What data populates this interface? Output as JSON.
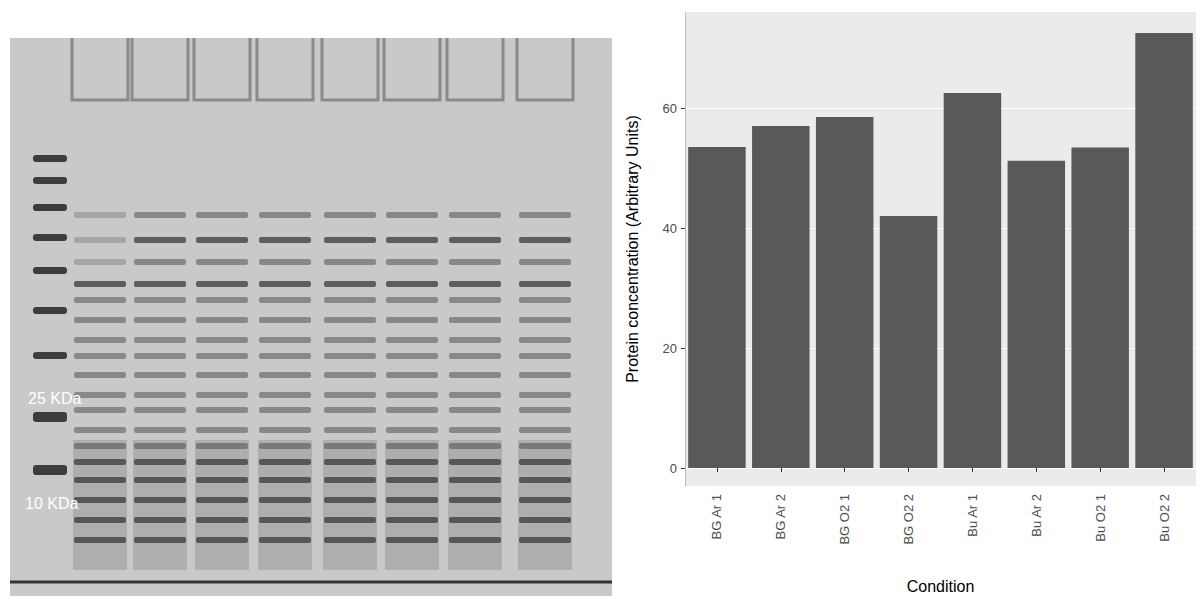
{
  "chart_data": {
    "type": "bar",
    "categories": [
      "BG Ar 1",
      "BG Ar 2",
      "BG O2 1",
      "BG O2 2",
      "Bu Ar 1",
      "Bu Ar 2",
      "Bu O2 1",
      "Bu O2 2"
    ],
    "values": [
      53.5,
      57,
      58.5,
      42,
      62.5,
      51.2,
      53.4,
      72.5
    ],
    "color": "#595959",
    "xlabel": "Condition",
    "ylabel": "Protein concentration (Arbitrary Units)",
    "ylim": [
      -3,
      76
    ],
    "yticks": [
      0,
      20,
      40,
      60
    ],
    "grid": true
  },
  "gel": {
    "marker_labels": [
      "25 KDa",
      "10 KDa"
    ]
  }
}
